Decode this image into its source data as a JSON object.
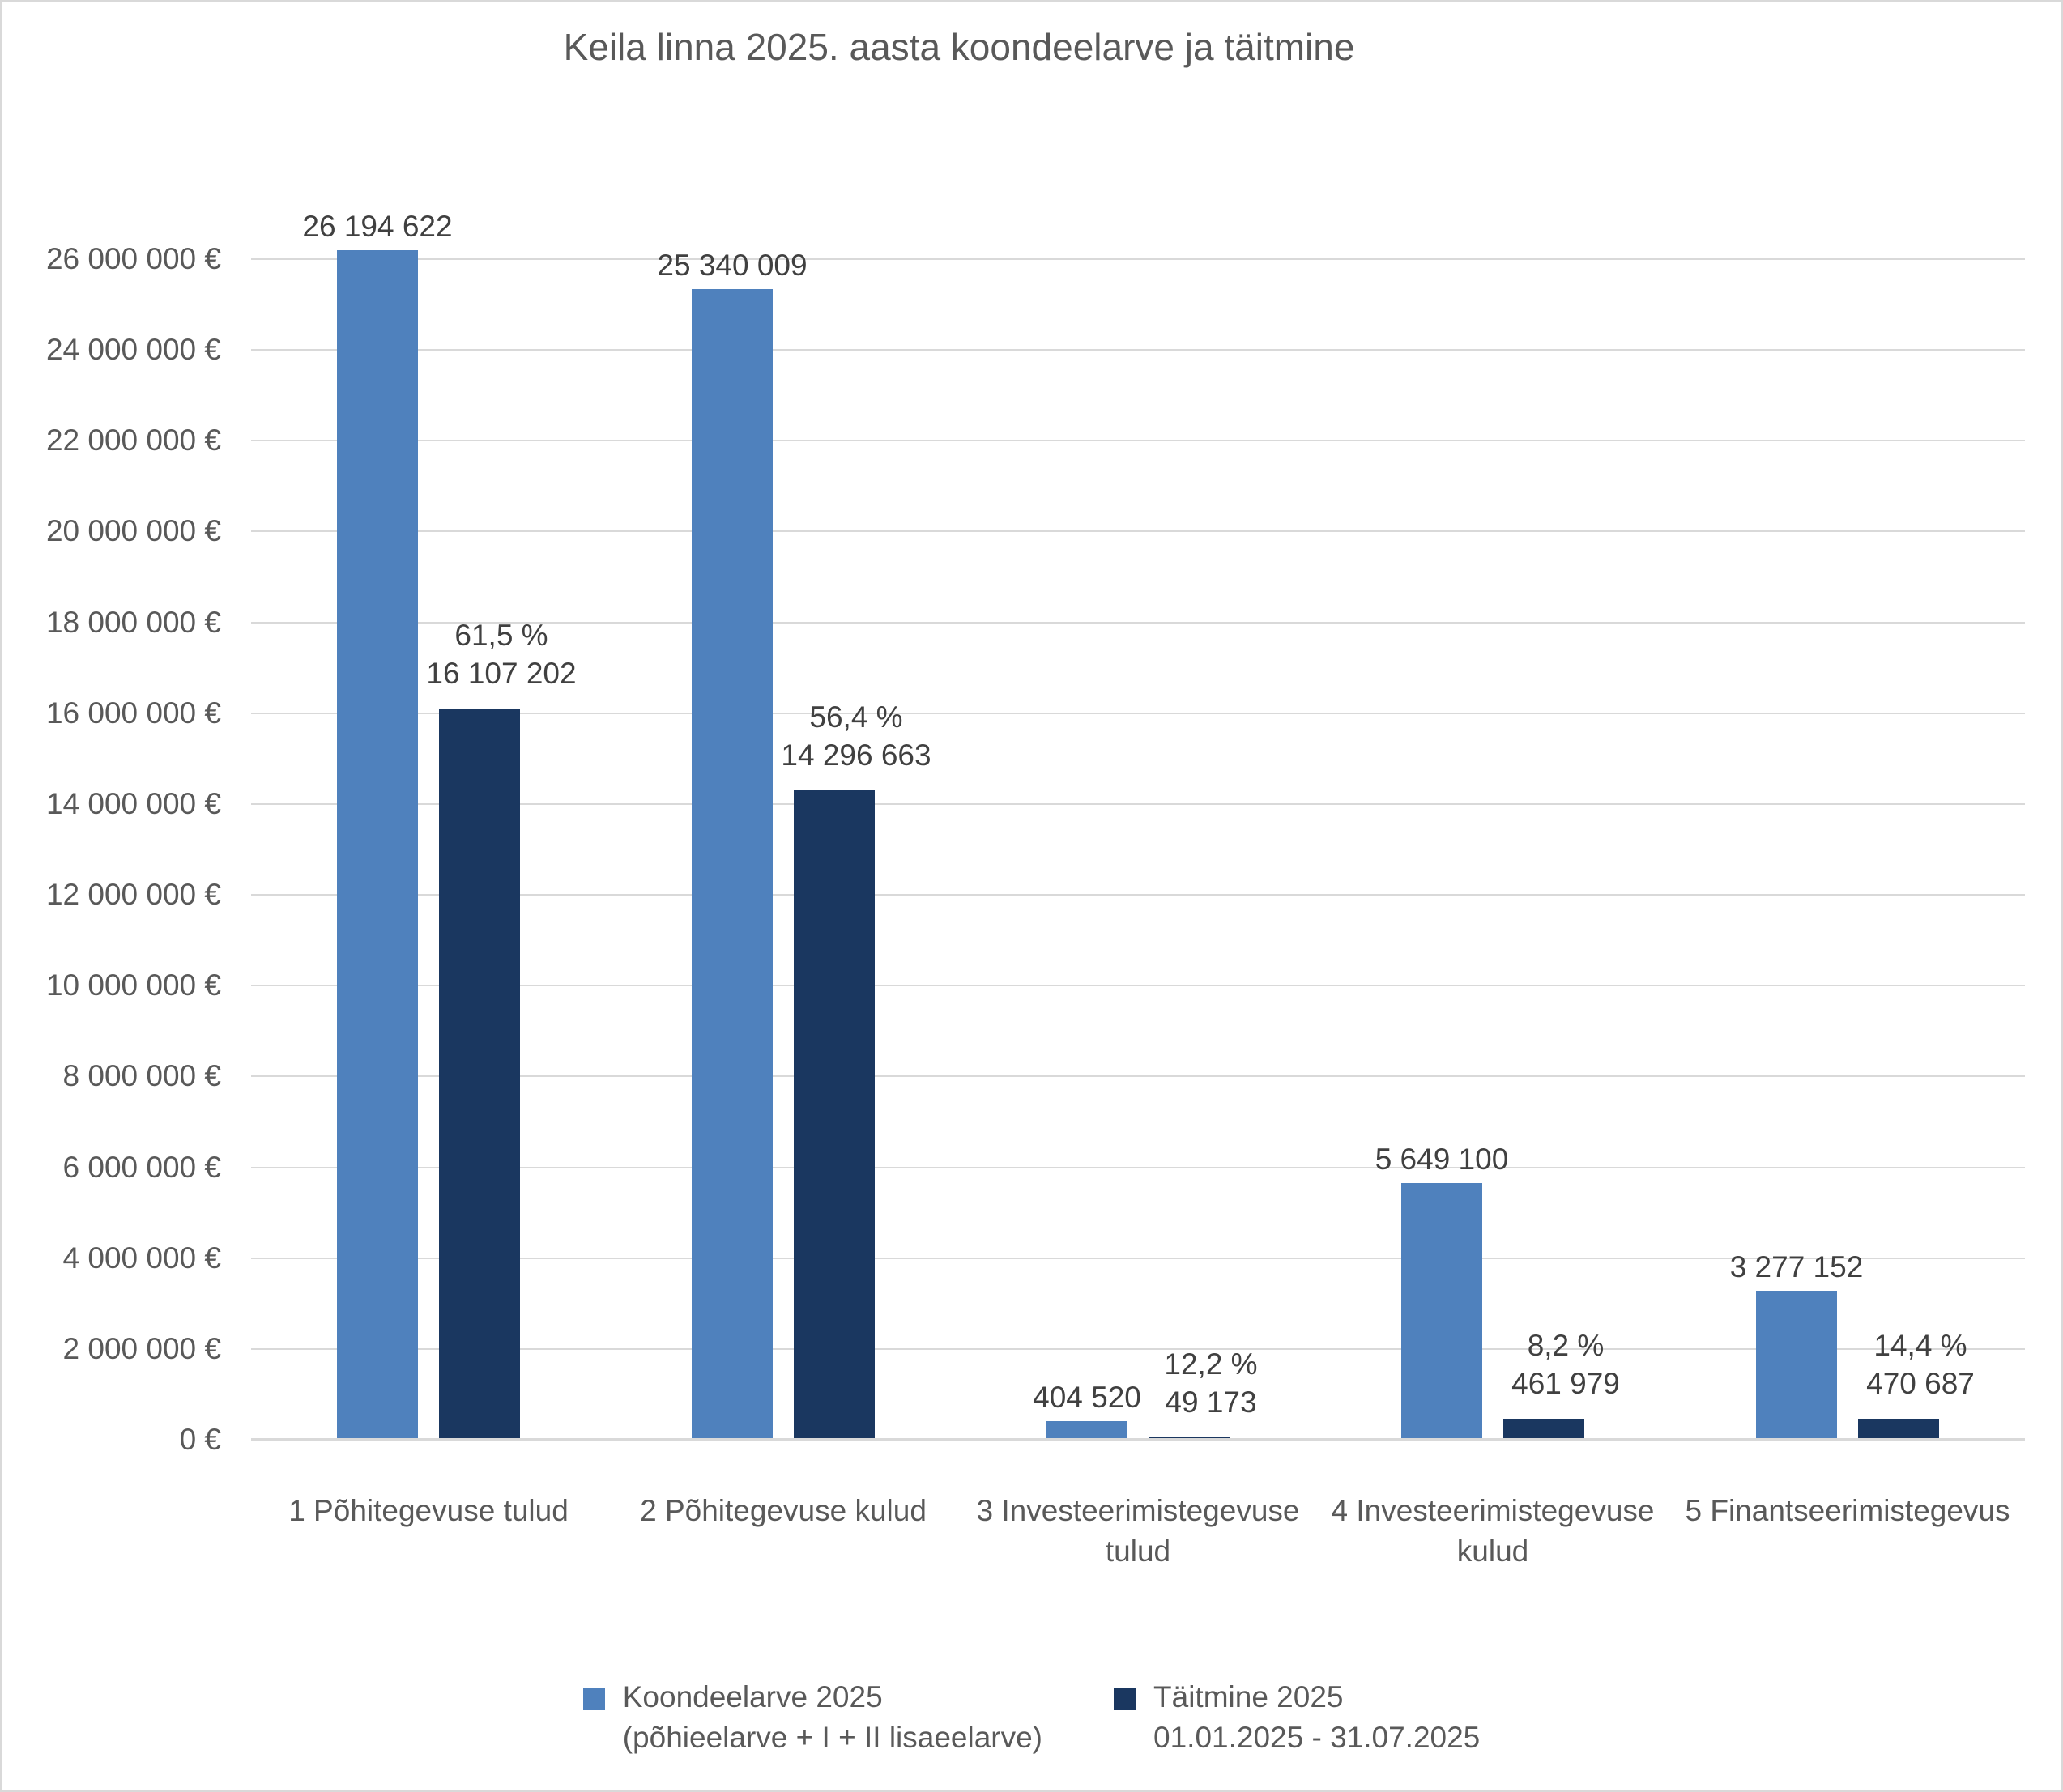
{
  "chart_data": {
    "type": "bar",
    "title": "Keila linna 2025. aasta koondeelarve ja täitmine",
    "categories": [
      "1 Põhitegevuse tulud",
      "2 Põhitegevuse kulud",
      "3 Investeerimistegevuse tulud",
      "4 Investeerimistegevuse kulud",
      "5 Finantseerimistegevus"
    ],
    "series": [
      {
        "name": "Koondeelarve 2025 (põhieelarve + I + II lisaeelarve)",
        "legend_lines": [
          "Koondeelarve 2025",
          "(põhieelarve + I + II lisaeelarve)"
        ],
        "color": "#4F81BD",
        "values": [
          26194622,
          25340009,
          404520,
          5649100,
          3277152
        ],
        "value_labels": [
          "26 194 622",
          "25 340 009",
          "404 520",
          "5 649 100",
          "3 277 152"
        ]
      },
      {
        "name": "Täitmine 2025 01.01.2025 - 31.07.2025",
        "legend_lines": [
          "Täitmine 2025",
          "01.01.2025 - 31.07.2025"
        ],
        "color": "#1A3760",
        "values": [
          16107202,
          14296663,
          49173,
          461979,
          470687
        ],
        "value_labels": [
          "16 107 202",
          "14 296 663",
          "49 173",
          "461 979",
          "470 687"
        ],
        "percent_labels": [
          "61,5 %",
          "56,4 %",
          "12,2 %",
          "8,2 %",
          "14,4 %"
        ]
      }
    ],
    "y_axis": {
      "tick_labels": [
        "0 €",
        "2 000 000 €",
        "4 000 000 €",
        "6 000 000 €",
        "8 000 000 €",
        "10 000 000 €",
        "12 000 000 €",
        "14 000 000 €",
        "16 000 000 €",
        "18 000 000 €",
        "20 000 000 €",
        "22 000 000 €",
        "24 000 000 €",
        "26 000 000 €"
      ],
      "tick_values": [
        0,
        2000000,
        4000000,
        6000000,
        8000000,
        10000000,
        12000000,
        14000000,
        16000000,
        18000000,
        20000000,
        22000000,
        24000000,
        26000000
      ],
      "ylim": [
        0,
        26000000
      ],
      "grid": true
    },
    "legend_position": "bottom",
    "colors": {
      "series1": "#4F81BD",
      "series2": "#1A3760",
      "gridline": "#D9D9D9",
      "axis_text": "#595959",
      "data_label_text": "#404040",
      "title_text": "#595959",
      "background": "#FFFFFF",
      "frame_border": "#D9D9D9"
    }
  }
}
